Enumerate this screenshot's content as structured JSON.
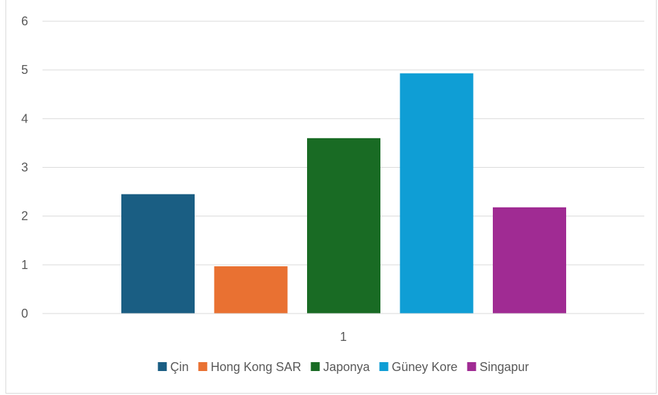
{
  "chart_data": {
    "type": "bar",
    "categories": [
      "1"
    ],
    "series": [
      {
        "name": "Çin",
        "values": [
          2.45
        ],
        "color": "#1a5e83"
      },
      {
        "name": "Hong Kong SAR",
        "values": [
          0.97
        ],
        "color": "#e97132"
      },
      {
        "name": "Japonya",
        "values": [
          3.6
        ],
        "color": "#196b24"
      },
      {
        "name": "Güney Kore",
        "values": [
          4.93
        ],
        "color": "#0f9ed5"
      },
      {
        "name": "Singapur",
        "values": [
          2.18
        ],
        "color": "#a02b93"
      }
    ],
    "ylim": [
      0,
      6
    ],
    "yticks": [
      "0",
      "1",
      "2",
      "3",
      "4",
      "5",
      "6"
    ],
    "grid": true,
    "legend_position": "bottom"
  }
}
